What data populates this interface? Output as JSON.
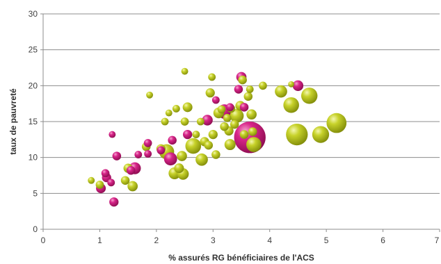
{
  "chart_data": {
    "type": "scatter",
    "title": "",
    "xlabel": "% assurés RG bénéficiaires de l'ACS",
    "ylabel": "taux de pauvreté",
    "xlim": [
      0,
      7
    ],
    "ylim": [
      0,
      30
    ],
    "x_ticks": [
      0,
      1,
      2,
      3,
      4,
      5,
      6,
      7
    ],
    "y_ticks": [
      0,
      5,
      10,
      15,
      20,
      25,
      30
    ],
    "grid": "horizontal",
    "legend": "none",
    "bubble_size_meaning": "relative",
    "colors": {
      "olive": "#b5c21a",
      "magenta": "#cc1f7a"
    },
    "series": [
      {
        "color": "olive",
        "points": [
          {
            "x": 0.85,
            "y": 6.8,
            "s": 0.5
          },
          {
            "x": 1.0,
            "y": 6.2,
            "s": 0.7
          },
          {
            "x": 1.45,
            "y": 6.8,
            "s": 0.8
          },
          {
            "x": 1.58,
            "y": 6.0,
            "s": 1.1
          },
          {
            "x": 1.5,
            "y": 8.5,
            "s": 0.9
          },
          {
            "x": 1.82,
            "y": 11.5,
            "s": 0.8
          },
          {
            "x": 1.88,
            "y": 18.7,
            "s": 0.5
          },
          {
            "x": 2.08,
            "y": 11.2,
            "s": 0.9
          },
          {
            "x": 2.15,
            "y": 15.0,
            "s": 0.6
          },
          {
            "x": 2.18,
            "y": 10.8,
            "s": 2.4
          },
          {
            "x": 2.22,
            "y": 16.2,
            "s": 0.5
          },
          {
            "x": 2.32,
            "y": 7.8,
            "s": 1.5
          },
          {
            "x": 2.35,
            "y": 16.8,
            "s": 0.6
          },
          {
            "x": 2.4,
            "y": 8.5,
            "s": 1.0
          },
          {
            "x": 2.45,
            "y": 10.2,
            "s": 1.1
          },
          {
            "x": 2.47,
            "y": 7.7,
            "s": 1.4
          },
          {
            "x": 2.5,
            "y": 15.0,
            "s": 0.7
          },
          {
            "x": 2.5,
            "y": 22.0,
            "s": 0.5
          },
          {
            "x": 2.55,
            "y": 17.0,
            "s": 1.0
          },
          {
            "x": 2.65,
            "y": 11.6,
            "s": 2.6
          },
          {
            "x": 2.7,
            "y": 13.2,
            "s": 0.6
          },
          {
            "x": 2.78,
            "y": 15.0,
            "s": 0.6
          },
          {
            "x": 2.8,
            "y": 9.7,
            "s": 1.6
          },
          {
            "x": 2.85,
            "y": 12.2,
            "s": 0.9
          },
          {
            "x": 2.92,
            "y": 11.7,
            "s": 0.8
          },
          {
            "x": 2.95,
            "y": 19.0,
            "s": 0.9
          },
          {
            "x": 2.98,
            "y": 21.2,
            "s": 0.6
          },
          {
            "x": 3.0,
            "y": 13.2,
            "s": 0.9
          },
          {
            "x": 3.05,
            "y": 10.4,
            "s": 0.8
          },
          {
            "x": 3.1,
            "y": 16.2,
            "s": 1.2
          },
          {
            "x": 3.15,
            "y": 16.7,
            "s": 0.7
          },
          {
            "x": 3.2,
            "y": 14.3,
            "s": 0.8
          },
          {
            "x": 3.25,
            "y": 15.5,
            "s": 0.7
          },
          {
            "x": 3.28,
            "y": 13.7,
            "s": 0.9
          },
          {
            "x": 3.3,
            "y": 11.8,
            "s": 1.3
          },
          {
            "x": 3.32,
            "y": 16.8,
            "s": 0.7
          },
          {
            "x": 3.38,
            "y": 14.6,
            "s": 0.8
          },
          {
            "x": 3.42,
            "y": 15.8,
            "s": 2.0
          },
          {
            "x": 3.48,
            "y": 17.2,
            "s": 1.0
          },
          {
            "x": 3.52,
            "y": 20.8,
            "s": 0.8
          },
          {
            "x": 3.55,
            "y": 13.2,
            "s": 0.8
          },
          {
            "x": 3.62,
            "y": 18.5,
            "s": 0.8
          },
          {
            "x": 3.65,
            "y": 19.5,
            "s": 0.6
          },
          {
            "x": 3.68,
            "y": 16.0,
            "s": 1.1
          },
          {
            "x": 3.7,
            "y": 13.6,
            "s": 0.8
          },
          {
            "x": 3.72,
            "y": 11.8,
            "s": 2.4
          },
          {
            "x": 3.88,
            "y": 20.0,
            "s": 0.7
          },
          {
            "x": 4.2,
            "y": 19.2,
            "s": 1.6
          },
          {
            "x": 4.38,
            "y": 17.3,
            "s": 2.6
          },
          {
            "x": 4.38,
            "y": 20.2,
            "s": 0.4
          },
          {
            "x": 4.48,
            "y": 13.2,
            "s": 5.0
          },
          {
            "x": 4.7,
            "y": 18.6,
            "s": 2.8
          },
          {
            "x": 4.9,
            "y": 13.2,
            "s": 3.0
          },
          {
            "x": 5.18,
            "y": 14.8,
            "s": 4.2
          }
        ]
      },
      {
        "color": "magenta",
        "points": [
          {
            "x": 1.02,
            "y": 5.7,
            "s": 1.0
          },
          {
            "x": 1.1,
            "y": 7.8,
            "s": 0.7
          },
          {
            "x": 1.12,
            "y": 7.2,
            "s": 0.9
          },
          {
            "x": 1.2,
            "y": 6.5,
            "s": 0.6
          },
          {
            "x": 1.22,
            "y": 13.2,
            "s": 0.5
          },
          {
            "x": 1.25,
            "y": 3.8,
            "s": 0.9
          },
          {
            "x": 1.3,
            "y": 10.2,
            "s": 0.8
          },
          {
            "x": 1.55,
            "y": 8.2,
            "s": 0.8
          },
          {
            "x": 1.62,
            "y": 8.5,
            "s": 1.5
          },
          {
            "x": 1.68,
            "y": 10.4,
            "s": 0.6
          },
          {
            "x": 1.85,
            "y": 12.0,
            "s": 0.7
          },
          {
            "x": 1.85,
            "y": 10.5,
            "s": 0.6
          },
          {
            "x": 2.08,
            "y": 11.0,
            "s": 0.7
          },
          {
            "x": 2.25,
            "y": 9.8,
            "s": 1.8
          },
          {
            "x": 2.28,
            "y": 12.4,
            "s": 0.8
          },
          {
            "x": 2.55,
            "y": 13.2,
            "s": 0.9
          },
          {
            "x": 2.9,
            "y": 15.2,
            "s": 1.2
          },
          {
            "x": 3.05,
            "y": 18.0,
            "s": 0.6
          },
          {
            "x": 3.2,
            "y": 16.4,
            "s": 2.2
          },
          {
            "x": 3.3,
            "y": 17.0,
            "s": 0.7
          },
          {
            "x": 3.45,
            "y": 19.5,
            "s": 0.8
          },
          {
            "x": 3.5,
            "y": 21.2,
            "s": 1.1
          },
          {
            "x": 3.55,
            "y": 17.0,
            "s": 0.8
          },
          {
            "x": 3.65,
            "y": 12.8,
            "s": 10.5
          },
          {
            "x": 4.5,
            "y": 20.0,
            "s": 1.2
          }
        ]
      }
    ]
  }
}
